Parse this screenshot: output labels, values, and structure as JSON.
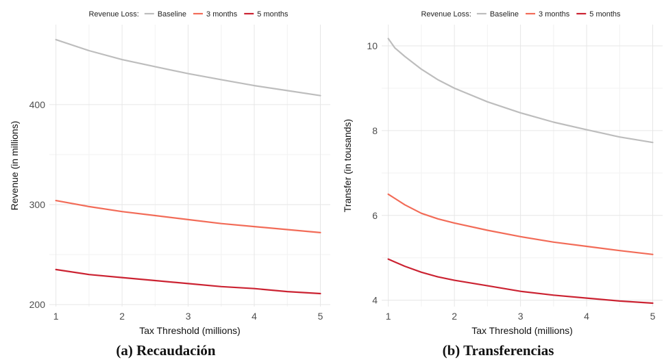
{
  "chart_data": [
    {
      "type": "line",
      "title": "",
      "xlabel": "Tax Threshold (millions)",
      "ylabel": "Revenue (in millions)",
      "xlim": [
        0.9,
        5.15
      ],
      "ylim": [
        198,
        480
      ],
      "xticks": [
        1,
        2,
        3,
        4,
        5
      ],
      "yticks": [
        200,
        300,
        400
      ],
      "xtick_labels": [
        "1",
        "2",
        "3",
        "4",
        "5"
      ],
      "ytick_labels": [
        "200",
        "300",
        "400"
      ],
      "grid": true,
      "legend": {
        "title": "Revenue Loss:",
        "position": "top",
        "entries": [
          "Baseline",
          "3 months",
          "5 months"
        ]
      },
      "x": [
        1,
        1.5,
        2,
        2.5,
        3,
        3.5,
        4,
        4.5,
        5
      ],
      "series": [
        {
          "name": "Baseline",
          "color": "#bdbdbd",
          "values": [
            465,
            454,
            445,
            438,
            431,
            425,
            419,
            414,
            409
          ]
        },
        {
          "name": "3 months",
          "color": "#f26b57",
          "values": [
            304,
            298,
            293,
            289,
            285,
            281,
            278,
            275,
            272
          ]
        },
        {
          "name": "5 months",
          "color": "#cb2231",
          "values": [
            235,
            230,
            227,
            224,
            221,
            218,
            216,
            213,
            211
          ]
        }
      ],
      "caption": "(a) Recaudación"
    },
    {
      "type": "line",
      "title": "",
      "xlabel": "Tax Threshold (millions)",
      "ylabel": "Transfer (in tousands)",
      "xlim": [
        0.9,
        5.15
      ],
      "ylim": [
        3.85,
        10.5
      ],
      "xticks": [
        1,
        2,
        3,
        4,
        5
      ],
      "yticks": [
        4,
        6,
        8,
        10
      ],
      "xtick_labels": [
        "1",
        "2",
        "3",
        "4",
        "5"
      ],
      "ytick_labels": [
        "4",
        "6",
        "8",
        "10"
      ],
      "grid": true,
      "legend": {
        "title": "Revenue Loss:",
        "position": "top",
        "entries": [
          "Baseline",
          "3 months",
          "5 months"
        ]
      },
      "x": [
        1,
        1.1,
        1.25,
        1.5,
        1.75,
        2,
        2.5,
        3,
        3.5,
        4,
        4.5,
        5
      ],
      "series": [
        {
          "name": "Baseline",
          "color": "#bdbdbd",
          "values": [
            10.17,
            9.95,
            9.75,
            9.45,
            9.2,
            9.0,
            8.68,
            8.42,
            8.2,
            8.02,
            7.85,
            7.72
          ]
        },
        {
          "name": "3 months",
          "color": "#f26b57",
          "values": [
            6.5,
            6.4,
            6.25,
            6.05,
            5.92,
            5.82,
            5.65,
            5.5,
            5.37,
            5.27,
            5.17,
            5.08
          ]
        },
        {
          "name": "5 months",
          "color": "#cb2231",
          "values": [
            4.97,
            4.9,
            4.8,
            4.66,
            4.55,
            4.47,
            4.34,
            4.21,
            4.12,
            4.05,
            3.98,
            3.93
          ]
        }
      ],
      "caption": "(b) Transferencias"
    }
  ]
}
